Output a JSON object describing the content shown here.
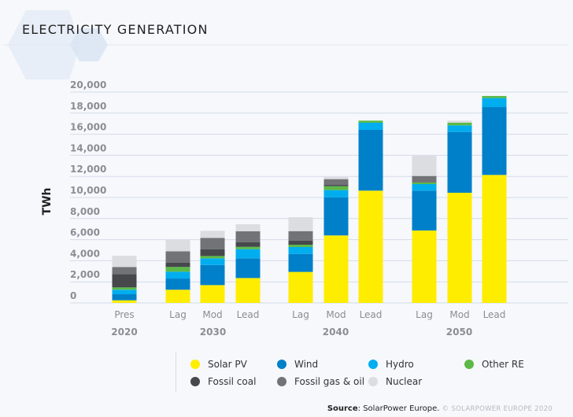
{
  "title": "ELECTRICITY GENERATION",
  "source_label": "Source",
  "source_text": ": SolarPower Europe.",
  "copyright": "© SOLARPOWER EUROPE 2020",
  "chart_data": {
    "type": "bar",
    "stacked": true,
    "ylabel": "TWh",
    "ylim": [
      0,
      20000
    ],
    "yticks": [
      "0",
      "2,000",
      "4,000",
      "6,000",
      "8,000",
      "10,000",
      "12,000",
      "14,000",
      "16,000",
      "18,000",
      "20,000"
    ],
    "grid": true,
    "legend_position": "bottom",
    "categories": [
      "Pres",
      "Lag",
      "Mod",
      "Lead",
      "Lag",
      "Mod",
      "Lead",
      "Lag",
      "Mod",
      "Lead"
    ],
    "groups": [
      {
        "label": "2020",
        "members": [
          0
        ]
      },
      {
        "label": "2030",
        "members": [
          1,
          2,
          3
        ]
      },
      {
        "label": "2040",
        "members": [
          4,
          5,
          6
        ]
      },
      {
        "label": "2050",
        "members": [
          7,
          8,
          9
        ]
      }
    ],
    "series": [
      {
        "name": "Solar PV",
        "color": "#ffed00",
        "values": [
          250,
          1250,
          1690,
          2360,
          2940,
          6400,
          10650,
          6870,
          10450,
          12140
        ]
      },
      {
        "name": "Wind",
        "color": "#0080c9",
        "values": [
          570,
          1060,
          1910,
          1870,
          1710,
          3620,
          5770,
          3780,
          5770,
          6440
        ]
      },
      {
        "name": "Hydro",
        "color": "#00aeef",
        "values": [
          430,
          650,
          630,
          870,
          650,
          680,
          670,
          620,
          620,
          850
        ]
      },
      {
        "name": "Other RE",
        "color": "#5cb947",
        "values": [
          220,
          450,
          220,
          220,
          220,
          370,
          200,
          150,
          250,
          200
        ]
      },
      {
        "name": "Fossil coal",
        "color": "#46484b",
        "values": [
          1270,
          400,
          650,
          430,
          400,
          120,
          0,
          0,
          0,
          0
        ]
      },
      {
        "name": "Fossil gas & oil",
        "color": "#717377",
        "values": [
          670,
          1090,
          1070,
          1040,
          890,
          550,
          0,
          620,
          0,
          0
        ]
      },
      {
        "name": "Nuclear",
        "color": "#dcdde0",
        "values": [
          1070,
          1070,
          670,
          670,
          1320,
          200,
          0,
          1910,
          200,
          0
        ]
      }
    ]
  }
}
